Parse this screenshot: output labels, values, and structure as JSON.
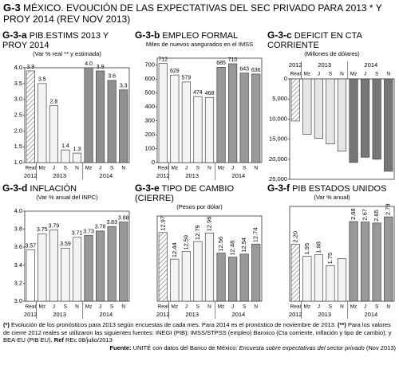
{
  "header": {
    "label": "G-3",
    "title": "MÉXICO. EVOUCIÓN DE LAS EXPECTATIVAS DEL SEC PRIVADO PARA 2013 * Y PROY 2014  (REV NOV 2013)"
  },
  "chart_data": [
    {
      "type": "bar",
      "label": "G-3-a",
      "title": "PIB.ESTIMS 2013 Y PROY 2014",
      "subtitle": "(Var % real ** y estimada)",
      "ylim": [
        1,
        4
      ],
      "yticks": [
        {
          "value": 1,
          "label": "1.0"
        },
        1.5,
        {
          "value": 2,
          "label": "2.0"
        },
        2.5,
        {
          "value": 3,
          "label": "3.0"
        },
        3.5,
        {
          "value": 4,
          "label": "4.0"
        }
      ],
      "groups": [
        {
          "name": "2012",
          "categories": [
            "Real"
          ],
          "values": [
            3.9
          ],
          "color": "#ffffff",
          "pattern": "hatch"
        },
        {
          "name": "2013",
          "categories": [
            "Mz",
            "J",
            "S",
            "N"
          ],
          "values": [
            3.5,
            2.8,
            1.4,
            1.3
          ],
          "color": "#f4f4f4"
        },
        {
          "name": "2014",
          "categories": [
            "Mz",
            "J",
            "S",
            "N"
          ],
          "values": [
            4.0,
            3.9,
            3.6,
            3.3
          ],
          "value_labels": [
            "4.0",
            "3.9",
            "3.6",
            "3.3"
          ],
          "color": "#8f8f8f"
        }
      ]
    },
    {
      "type": "bar",
      "label": "G-3-b",
      "title": "EMPLEO FORMAL",
      "subtitle": "Miles de nuevos asegurados en el IMSS",
      "ylim": [
        0,
        750
      ],
      "yticks": [
        0,
        100,
        200,
        300,
        400,
        500,
        600,
        700
      ],
      "groups": [
        {
          "name": "2012",
          "categories": [
            "Real"
          ],
          "values": [
            712
          ],
          "color": "#f4f4f4"
        },
        {
          "name": "2013",
          "categories": [
            "Mz",
            "J",
            "S",
            "N"
          ],
          "values": [
            629,
            579,
            474,
            468
          ],
          "color": "#f4f4f4"
        },
        {
          "name": "2014",
          "categories": [
            "Mz",
            "J",
            "S",
            "N"
          ],
          "values": [
            685,
            710,
            643,
            636
          ],
          "color": "#999999"
        }
      ]
    },
    {
      "type": "bar",
      "label": "G-3-c",
      "title": "DEFICIT EN CTA CORRIENTE",
      "subtitle": "(Millones de dólares)",
      "inverted": true,
      "ylim": [
        0,
        25000
      ],
      "yticks": [
        0,
        {
          "value": 5000,
          "label": "5,000"
        },
        {
          "value": 10000,
          "label": "10,000"
        },
        {
          "value": 15000,
          "label": "15,000"
        },
        {
          "value": 20000,
          "label": "20,000"
        },
        {
          "value": 25000,
          "label": "25,000"
        }
      ],
      "groups": [
        {
          "name": "2012",
          "categories": [
            "Real"
          ],
          "values": [
            10500
          ],
          "color": "#ffffff",
          "pattern": "hatch"
        },
        {
          "name": "2013",
          "categories": [
            "Mz",
            "J",
            "S",
            "N"
          ],
          "values": [
            13800,
            14800,
            16200,
            18000
          ],
          "color": "#e6e6e6"
        },
        {
          "name": "2014",
          "categories": [
            "Mz",
            "J",
            "S",
            "N"
          ],
          "values": [
            20800,
            19500,
            20000,
            23000
          ],
          "color": "#777777"
        }
      ]
    },
    {
      "type": "bar",
      "label": "G-3-d",
      "title": "INFLACIÓN",
      "subtitle": "(Var % anual del INPC)",
      "ylim": [
        3,
        4
      ],
      "yticks": [
        {
          "value": 3,
          "label": "3.0"
        },
        3.2,
        3.4,
        3.6,
        3.8,
        {
          "value": 4,
          "label": "4.0"
        }
      ],
      "groups": [
        {
          "name": "2012",
          "categories": [
            "Real"
          ],
          "values": [
            3.57
          ],
          "color": "#ffffff"
        },
        {
          "name": "2013",
          "categories": [
            "Mz",
            "J",
            "S",
            "N"
          ],
          "values": [
            3.75,
            3.79,
            3.59,
            3.71
          ],
          "color": "#f4f4f4"
        },
        {
          "name": "2014",
          "categories": [
            "Mz",
            "J",
            "S",
            "N"
          ],
          "values": [
            3.73,
            3.78,
            3.83,
            3.88
          ],
          "color": "#999999"
        }
      ]
    },
    {
      "type": "bar",
      "label": "G-3-e",
      "title": "TIPO DE CAMBIO (CIERRE)",
      "subtitle": "(Pesos por dólar)",
      "rotate_labels": true,
      "ylim": [
        11.6,
        13.3
      ],
      "groups": [
        {
          "name": "2012",
          "categories": [
            "Real"
          ],
          "values": [
            12.97
          ],
          "color": "#ffffff",
          "pattern": "hatch"
        },
        {
          "name": "2013",
          "categories": [
            "Mz",
            "J",
            "S",
            "N"
          ],
          "values": [
            12.44,
            12.59,
            12.79,
            12.96
          ],
          "color": "#f4f4f4"
        },
        {
          "name": "2014",
          "categories": [
            "Mz",
            "J",
            "S",
            "N"
          ],
          "values": [
            12.56,
            12.48,
            12.54,
            12.74
          ],
          "color": "#999999"
        }
      ]
    },
    {
      "type": "bar",
      "label": "G-3-f",
      "title": "PIB ESTADOS UNIDOS",
      "subtitle": "(Var % anual)",
      "rotate_labels": true,
      "ylim": [
        1.0,
        3.0
      ],
      "groups": [
        {
          "name": "2012",
          "categories": [
            "Real"
          ],
          "values": [
            2.2
          ],
          "value_labels": [
            "2.20"
          ],
          "color": "#ffffff",
          "pattern": "hatch"
        },
        {
          "name": "2013",
          "categories": [
            "Mz",
            "J",
            "S",
            "N"
          ],
          "values": [
            1.95,
            1.98,
            1.75,
            1.9
          ],
          "value_labels": [
            "1.95",
            "1.98",
            "1.75",
            null
          ],
          "color": "#f4f4f4"
        },
        {
          "name": "2014",
          "categories": [
            "Mz",
            "J",
            "S",
            "N"
          ],
          "values": [
            2.68,
            2.67,
            2.65,
            2.78
          ],
          "color": "#999999"
        }
      ]
    }
  ],
  "footer": {
    "mark1": "(*)",
    "note1": "Evolución de los pronósticos para 2013 según encuestas de cada mes. Para 2014 es el pronóstico de noviembre de 2013.",
    "mark2": "(**)",
    "note2": "Para los valores de cierre 2012 reales se utilizaron las siguientes fuentes: INEGI (PIB); IMSS/STPSS (empleo) Banxico (Cta corriente, inflación y tipo de cambio); y BEA-EU (PIB EU).",
    "ref_label": "Ref",
    "ref": "REc 08/julio/2013",
    "source_label": "Fuente:",
    "source": "UNITÉ con datos del Banco de México:",
    "source_title": "Encuesta sobre expectativas del sector privado",
    "source_date": "(Nov 2013)"
  }
}
